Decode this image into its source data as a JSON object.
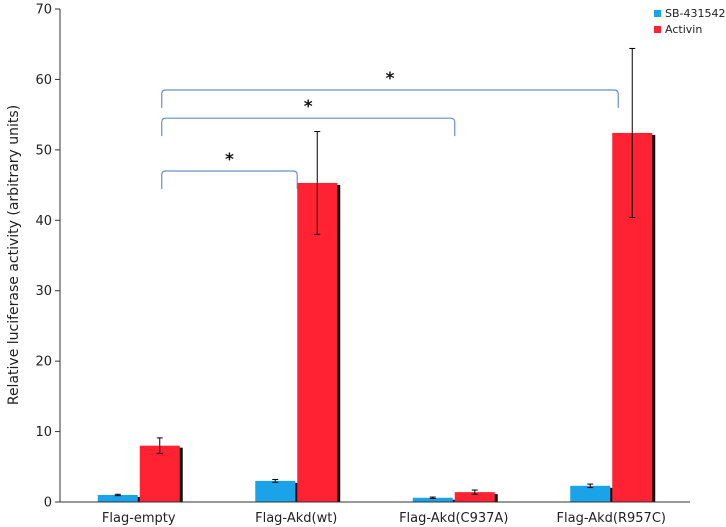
{
  "chart_data": {
    "type": "bar",
    "title": "",
    "xlabel": "",
    "ylabel": "Relative luciferase activity (arbitrary units)",
    "ylim": [
      0,
      70
    ],
    "yticks": [
      0,
      10,
      20,
      30,
      40,
      50,
      60,
      70
    ],
    "grid": false,
    "legend_position": "top-right",
    "categories": [
      "Flag-empty",
      "Flag-Akd(wt)",
      "Flag-Akd(C937A)",
      "Flag-Akd(R957C)"
    ],
    "series": [
      {
        "name": "SB-431542",
        "color": "#1aa3e8",
        "values": [
          1.0,
          3.0,
          0.6,
          2.3
        ],
        "errors": [
          0.1,
          0.2,
          0.1,
          0.25
        ]
      },
      {
        "name": "Activin",
        "color": "#ff2233",
        "values": [
          8.0,
          45.3,
          1.4,
          52.4
        ],
        "errors": [
          1.1,
          7.3,
          0.3,
          12.0
        ]
      }
    ],
    "significance": [
      {
        "from": "Flag-empty",
        "to": "Flag-Akd(wt)",
        "label": "*",
        "level": 47
      },
      {
        "from": "Flag-empty",
        "to": "Flag-Akd(C937A)",
        "label": "*",
        "level": 54.5
      },
      {
        "from": "Flag-empty",
        "to": "Flag-Akd(R957C)",
        "label": "*",
        "level": 58.5
      }
    ]
  }
}
